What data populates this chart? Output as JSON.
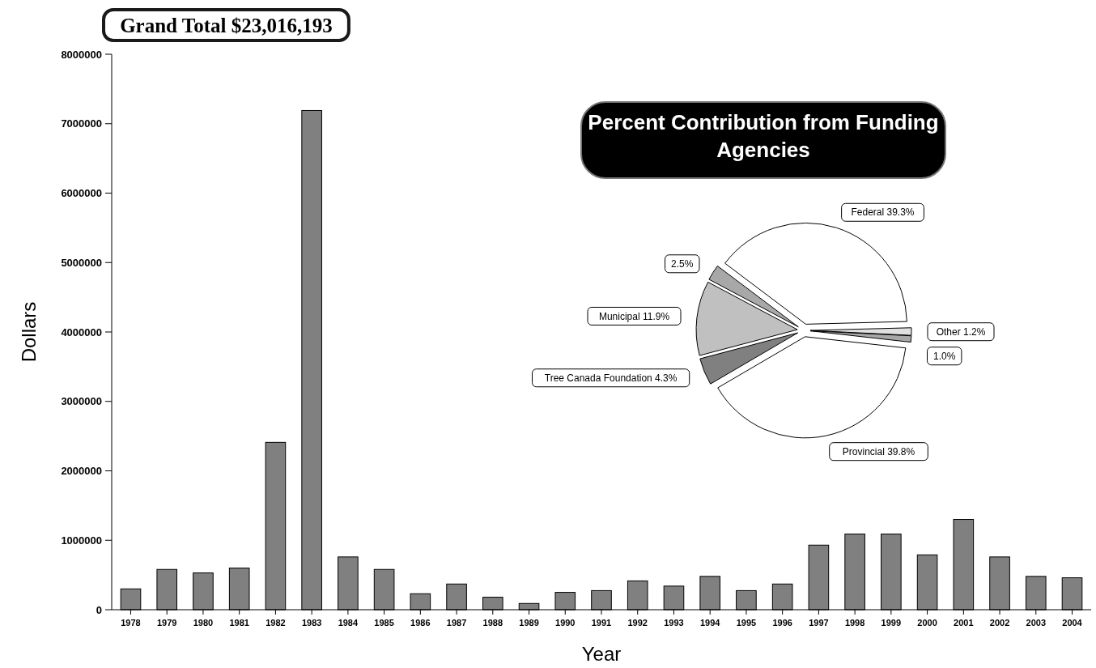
{
  "chart_data": [
    {
      "type": "bar",
      "title": "Grand Total $23,016,193",
      "xlabel": "Year",
      "ylabel": "Dollars",
      "categories": [
        "1978",
        "1979",
        "1980",
        "1981",
        "1982",
        "1983",
        "1984",
        "1985",
        "1986",
        "1987",
        "1988",
        "1989",
        "1990",
        "1991",
        "1992",
        "1993",
        "1994",
        "1995",
        "1996",
        "1997",
        "1998",
        "1999",
        "2000",
        "2001",
        "2002",
        "2003",
        "2004"
      ],
      "values": [
        300000,
        580000,
        530000,
        600000,
        2410000,
        7190000,
        760000,
        580000,
        230000,
        370000,
        180000,
        90000,
        250000,
        275000,
        415000,
        340000,
        480000,
        275000,
        370000,
        930000,
        1090000,
        1090000,
        790000,
        1300000,
        760000,
        480000,
        460000
      ],
      "color": "#808080",
      "ylim": [
        0,
        8000000
      ],
      "yticks": [
        0,
        1000000,
        2000000,
        3000000,
        4000000,
        5000000,
        6000000,
        7000000,
        8000000
      ],
      "grid": false
    },
    {
      "type": "pie",
      "title": "Percent Contribution from Funding Agencies",
      "categories": [
        "Federal",
        "Other",
        null,
        "Provincial",
        "Tree Canada Foundation",
        "Municipal",
        null
      ],
      "values": [
        39.3,
        1.2,
        1.0,
        39.8,
        4.3,
        11.9,
        2.5
      ],
      "value_labels": [
        "39.3%",
        "1.2%",
        "1.0%",
        "39.8%",
        "4.3%",
        "11.9%",
        "2.5%"
      ],
      "colors": [
        "#ffffff",
        "#e0e0e0",
        "#a8a8a8",
        "#ffffff",
        "#808080",
        "#c0c0c0",
        "#a8a8a8"
      ]
    }
  ]
}
